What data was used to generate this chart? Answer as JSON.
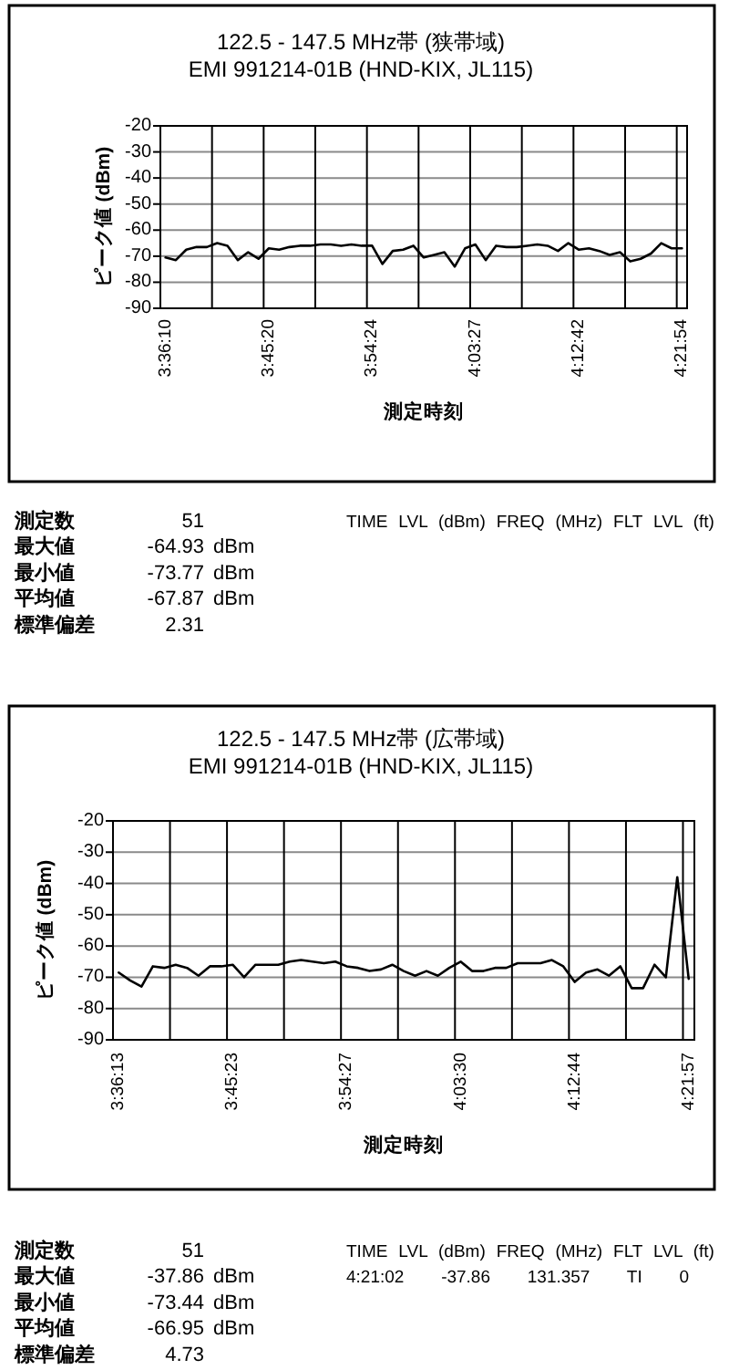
{
  "chart_data": [
    {
      "type": "line",
      "title": "122.5 - 147.5 MHz帯 (狭帯域)",
      "subtitle": "EMI 991214-01B (HND-KIX, JL115)",
      "xlabel": "測定時刻",
      "ylabel": "ピーク値 (dBm)",
      "categories": [
        "3:36:10",
        null,
        null,
        null,
        null,
        null,
        null,
        null,
        null,
        null,
        "3:45:20",
        null,
        null,
        null,
        null,
        null,
        null,
        null,
        null,
        null,
        "3:54:24",
        null,
        null,
        null,
        null,
        null,
        null,
        null,
        null,
        null,
        "4:03:27",
        null,
        null,
        null,
        null,
        null,
        null,
        null,
        null,
        null,
        "4:12:42",
        null,
        null,
        null,
        null,
        null,
        null,
        null,
        null,
        null,
        "4:21:54"
      ],
      "values": [
        -70.5,
        -71.5,
        -67.5,
        -66.5,
        -66.5,
        -65,
        -66,
        -71.5,
        -68.5,
        -71,
        -67,
        -67.5,
        -66.5,
        -66,
        -66,
        -65.5,
        -65.5,
        -66,
        -65.5,
        -66,
        -66,
        -73,
        -68,
        -67.5,
        -66,
        -70.5,
        -69.5,
        -68.5,
        -74,
        -67,
        -65.5,
        -71.5,
        -66,
        -66.5,
        -66.5,
        -66,
        -65.5,
        -66,
        -68,
        -65,
        -67.5,
        -67,
        -68,
        -69.5,
        -68.5,
        -72,
        -71,
        -69,
        -65,
        -67,
        -67
      ],
      "color": "#000000",
      "ylim": [
        -90,
        -20
      ],
      "yticks": [
        -90,
        -80,
        -70,
        -60,
        -50,
        -40,
        -30,
        -20
      ],
      "grid": true,
      "annotations": [
        "測定数 51",
        "最大値 -64.93 dBm",
        "最小値 -73.77 dBm",
        "平均値 -67.87 dBm",
        "標準偏差 2.31",
        "TIME LVL (dBm) FREQ (MHz) FLT LVL (ft)"
      ]
    },
    {
      "type": "line",
      "title": "122.5 - 147.5 MHz帯 (広帯域)",
      "subtitle": "EMI 991214-01B (HND-KIX, JL115)",
      "xlabel": "測定時刻",
      "ylabel": "ピーク値 (dBm)",
      "categories": [
        "3:36:13",
        null,
        null,
        null,
        null,
        null,
        null,
        null,
        null,
        null,
        "3:45:23",
        null,
        null,
        null,
        null,
        null,
        null,
        null,
        null,
        null,
        "3:54:27",
        null,
        null,
        null,
        null,
        null,
        null,
        null,
        null,
        null,
        "4:03:30",
        null,
        null,
        null,
        null,
        null,
        null,
        null,
        null,
        null,
        "4:12:44",
        null,
        null,
        null,
        null,
        null,
        null,
        null,
        null,
        null,
        "4:21:57"
      ],
      "values": [
        -68.5,
        -71,
        -73,
        -66.5,
        -67,
        -66,
        -67,
        -69.5,
        -66.5,
        -66.5,
        -66,
        -70,
        -66,
        -66,
        -66,
        -65,
        -64.5,
        -65,
        -65.5,
        -65,
        -66.5,
        -67,
        -68,
        -67.5,
        -66,
        -68,
        -69.5,
        -68,
        -69.5,
        -67,
        -65,
        -68,
        -68,
        -67,
        -67,
        -65.5,
        -65.5,
        -65.5,
        -64.5,
        -66.5,
        -71.5,
        -68.5,
        -67.5,
        -69.5,
        -66.5,
        -73.5,
        -73.5,
        -66,
        -70,
        -38,
        -70.5
      ],
      "color": "#000000",
      "ylim": [
        -90,
        -20
      ],
      "yticks": [
        -90,
        -80,
        -70,
        -60,
        -50,
        -40,
        -30,
        -20
      ],
      "grid": true,
      "annotations": [
        "測定数 51",
        "最大値 -37.86 dBm",
        "最小値 -73.44 dBm",
        "平均値 -66.95 dBm",
        "標準偏差 4.73",
        "TIME LVL (dBm) FREQ (MHz) FLT LVL (ft)",
        "4:21:02 -37.86 131.357 TI 0"
      ]
    }
  ]
}
